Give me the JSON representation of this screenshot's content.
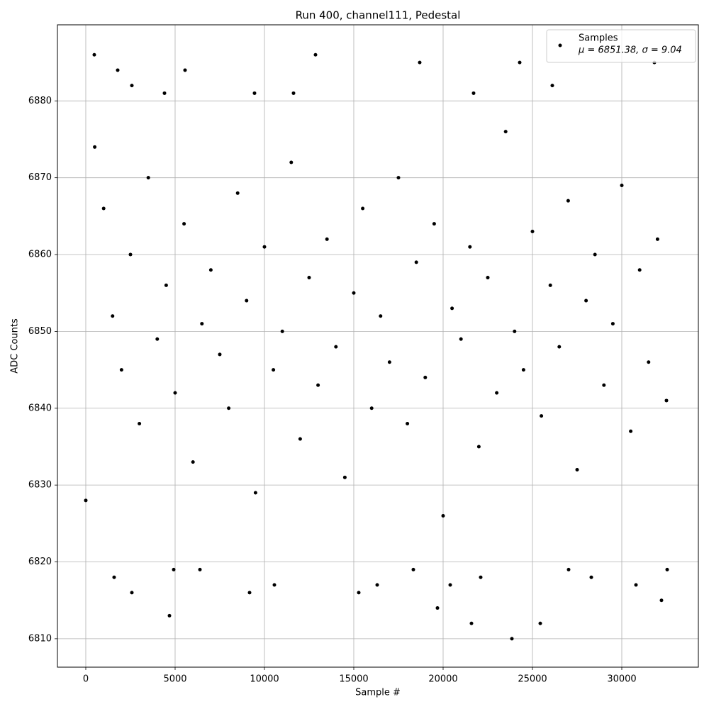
{
  "chart_data": {
    "type": "scatter",
    "title": "Run 400, channel111, Pedestal",
    "x_label": "Sample #",
    "y_label": "ADC Counts",
    "legend_note": "μ = 6851.38, σ = 9.04",
    "legend": "upper right",
    "grid": true,
    "xlim": [
      -1587,
      34286
    ],
    "ylim": [
      6806.3,
      6889.9
    ],
    "xticks": [
      0,
      5000,
      10000,
      15000,
      20000,
      25000,
      30000
    ],
    "yticks": [
      6810,
      6820,
      6830,
      6840,
      6850,
      6860,
      6870,
      6880
    ],
    "series": [
      {
        "name": "Samples",
        "color": "#000000",
        "x": [
          0,
          500,
          1000,
          1500,
          2000,
          2500,
          3000,
          3500,
          4000,
          4500,
          5000,
          5500,
          6000,
          6500,
          7000,
          7500,
          8000,
          8500,
          9000,
          9500,
          10000,
          10500,
          11000,
          11500,
          12000,
          12500,
          13000,
          13500,
          14000,
          14500,
          15000,
          15500,
          16000,
          16500,
          17000,
          17500,
          18000,
          18500,
          19000,
          19500,
          20000,
          20500,
          21000,
          21500,
          22000,
          22500,
          23000,
          23500,
          24000,
          24500,
          25000,
          25500,
          26000,
          26500,
          27000,
          27500,
          28000,
          28500,
          29000,
          29500,
          30000,
          30500,
          31000,
          31500,
          32000,
          32500,
          476,
          1786,
          2579,
          4405,
          5556,
          12857,
          18690,
          24286,
          26111,
          31825,
          9444,
          11627,
          21706,
          4683,
          23849,
          21587,
          25437,
          32222,
          19683,
          2579,
          9167,
          4921,
          10556,
          15278,
          16310,
          6389,
          1587,
          20397,
          22103,
          27024,
          28294,
          32540,
          30794,
          18333
        ],
        "values": [
          6828,
          6874,
          6866,
          6852,
          6845,
          6860,
          6838,
          6870,
          6849,
          6856,
          6842,
          6864,
          6833,
          6851,
          6858,
          6847,
          6840,
          6868,
          6854,
          6829,
          6861,
          6845,
          6850,
          6872,
          6836,
          6857,
          6843,
          6862,
          6848,
          6831,
          6855,
          6866,
          6840,
          6852,
          6846,
          6870,
          6838,
          6859,
          6844,
          6864,
          6826,
          6853,
          6849,
          6861,
          6835,
          6857,
          6842,
          6876,
          6850,
          6845,
          6863,
          6839,
          6856,
          6848,
          6867,
          6832,
          6854,
          6860,
          6843,
          6851,
          6869,
          6837,
          6858,
          6846,
          6862,
          6841,
          6886,
          6884,
          6882,
          6881,
          6884,
          6886,
          6885,
          6885,
          6882,
          6885,
          6881,
          6881,
          6881,
          6813,
          6810,
          6812,
          6812,
          6815,
          6814,
          6816,
          6816,
          6819,
          6817,
          6816,
          6817,
          6819,
          6818,
          6817,
          6818,
          6819,
          6818,
          6819,
          6817,
          6819
        ]
      }
    ]
  }
}
